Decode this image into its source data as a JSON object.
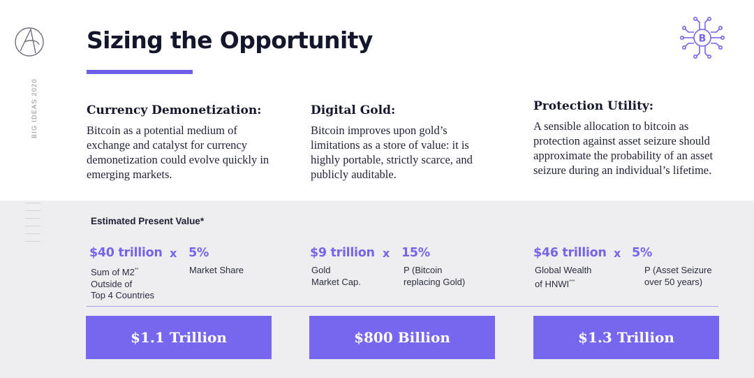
{
  "header": {
    "title": "Sizing the Opportunity",
    "side_label": "BIG IDEAS 2020"
  },
  "colors": {
    "accent": "#7767ee",
    "band": "#eeeef1",
    "title": "#14162b"
  },
  "icons": {
    "logo": "ark-logo-icon",
    "top_right": "bitcoin-circuit-icon"
  },
  "concepts": [
    {
      "heading": "Currency Demonetization:",
      "description": "Bitcoin as a potential medium of exchange and catalyst for currency demonetization could evolve quickly in emerging markets."
    },
    {
      "heading": "Digital Gold:",
      "description": "Bitcoin improves upon gold’s limitations as a store of value: it is highly portable, strictly scarce, and publicly auditable."
    },
    {
      "heading": "Protection Utility:",
      "description": "A sensible allocation to bitcoin as protection against asset seizure should approximate the probability of an asset seizure during an individual’s lifetime."
    }
  ],
  "estimate": {
    "label": "Estimated Present Value*",
    "times_symbol": "x",
    "columns": [
      {
        "base_value": "$40 trillion",
        "base_label_lines": [
          "Sum of M2",
          "Outside of",
          "Top 4 Countries"
        ],
        "base_label_sup": "**",
        "pct_value": "5%",
        "pct_label_lines": [
          "Market Share"
        ],
        "result": "$1.1 Trillion"
      },
      {
        "base_value": "$9 trillion",
        "base_label_lines": [
          "Gold",
          "Market Cap."
        ],
        "pct_value": "15%",
        "pct_label_lines": [
          "P (Bitcoin",
          "replacing Gold)"
        ],
        "result": "$800 Billion"
      },
      {
        "base_value": "$46 trillion",
        "base_label_lines": [
          "Global Wealth",
          "of HNWI"
        ],
        "base_label_sup": "***",
        "pct_value": "5%",
        "pct_label_lines": [
          "P (Asset Seizure",
          "over 50 years)"
        ],
        "result": "$1.3 Trillion"
      }
    ]
  }
}
